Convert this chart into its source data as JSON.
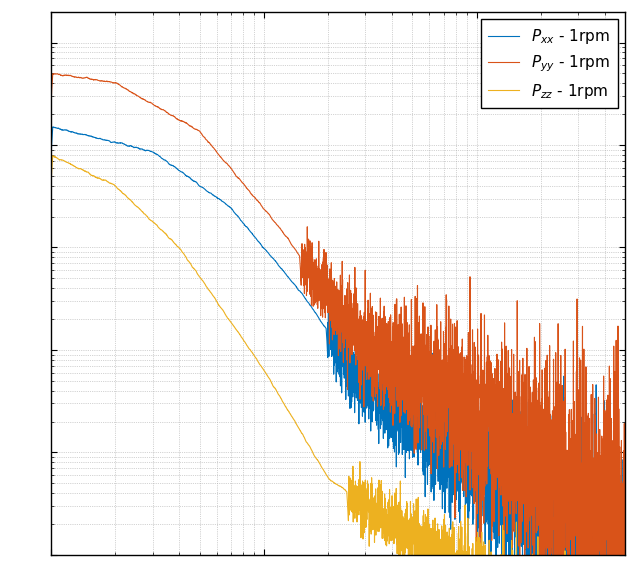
{
  "title": "",
  "xlabel": "",
  "ylabel": "",
  "line_colors": [
    "#0072BD",
    "#D95319",
    "#EDB120"
  ],
  "legend_labels": [
    "$P_{xx}$ - 1rpm",
    "$P_{yy}$ - 1rpm",
    "$P_{zz}$ - 1rpm"
  ],
  "xlim_log": [
    0,
    2.699
  ],
  "background_color": "#ffffff",
  "grid_color": "#b0b0b0",
  "seed": 42,
  "n_points": 5000
}
